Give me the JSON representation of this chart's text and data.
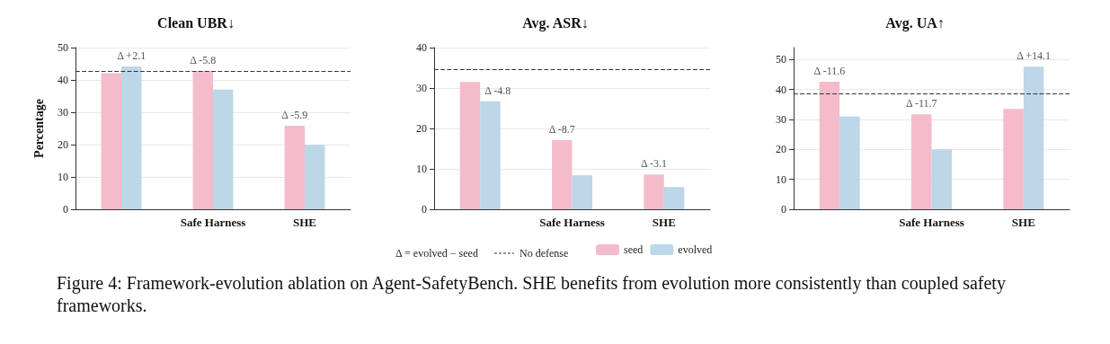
{
  "chart_data": [
    {
      "type": "bar",
      "title": "Clean UBR↓",
      "ylabel": "Percentage",
      "categories": [
        null,
        "Safe Harness",
        "SHE"
      ],
      "series": [
        {
          "color": "#f4bccb",
          "values": [
            42.1,
            42.8,
            25.8
          ]
        },
        {
          "color": "#bdd6e8",
          "values": [
            44.2,
            37.0,
            19.9
          ]
        }
      ],
      "ylim": [
        0,
        50
      ],
      "yticks": [
        0,
        10,
        20,
        30,
        40,
        50
      ],
      "grid": "y",
      "legend": false,
      "ref_lines": [
        {
          "axis": "y",
          "value": 42.8,
          "line_style": "dashed"
        }
      ],
      "annotations": [
        "Δ +2.1",
        "Δ -5.8",
        "Δ -5.9"
      ]
    },
    {
      "type": "bar",
      "title": "Avg. ASR↓",
      "categories": [
        null,
        "Safe Harness",
        "SHE"
      ],
      "series": [
        {
          "name": "seed",
          "color": "#f4bccb",
          "values": [
            31.5,
            17.1,
            8.6
          ]
        },
        {
          "name": "evolved",
          "color": "#bdd6e8",
          "values": [
            26.7,
            8.4,
            5.5
          ]
        }
      ],
      "ylim": [
        0,
        40
      ],
      "yticks": [
        0,
        10,
        20,
        30,
        40
      ],
      "grid": "y",
      "legend": "bottom",
      "ref_lines": [
        {
          "axis": "y",
          "value": 34.6,
          "label": "No defense",
          "line_style": "dashed"
        }
      ],
      "annotations": [
        "Δ -4.8",
        "Δ -8.7",
        "Δ -3.1",
        "Δ = evolved − seed"
      ]
    },
    {
      "type": "bar",
      "title": "Avg. UA↑",
      "categories": [
        null,
        "Safe Harness",
        "SHE"
      ],
      "series": [
        {
          "color": "#f4bccb",
          "values": [
            42.6,
            31.7,
            33.5
          ]
        },
        {
          "color": "#bdd6e8",
          "values": [
            31.0,
            20.0,
            47.6
          ]
        }
      ],
      "ylim": [
        0,
        54
      ],
      "yticks": [
        0,
        10,
        20,
        30,
        40,
        50
      ],
      "grid": "y",
      "legend": false,
      "ref_lines": [
        {
          "axis": "y",
          "value": 38.7,
          "line_style": "dashed"
        }
      ],
      "annotations": [
        "Δ -11.6",
        "Δ -11.7",
        "Δ +14.1",
        "Figure 4: Framework-evolution ablation on Agent-SafetyBench. SHE benefits from evolution more consistently than coupled safety frameworks."
      ]
    }
  ]
}
